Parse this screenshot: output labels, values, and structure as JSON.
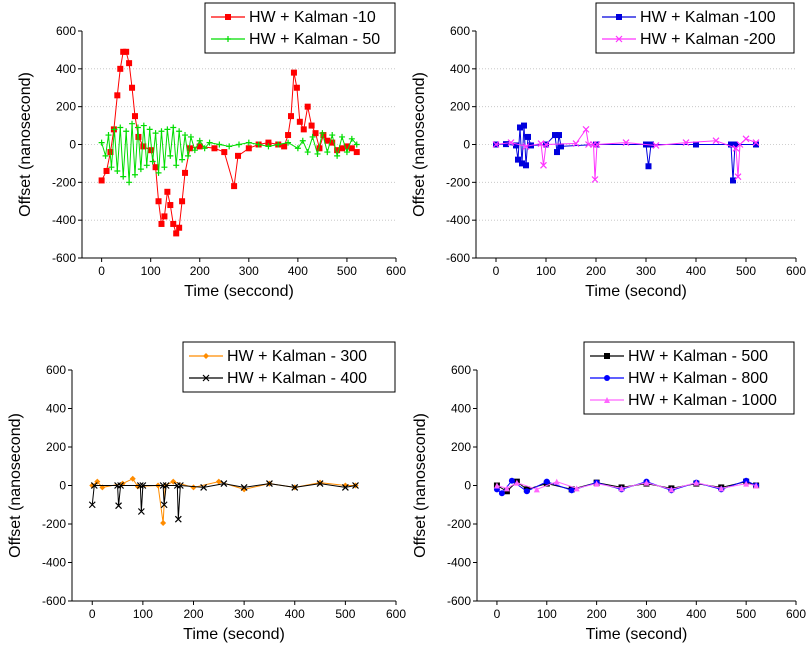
{
  "chart_data": [
    {
      "type": "line",
      "xlabel": "Time (seccond)",
      "ylabel": "Offset (nanosecond)",
      "xlim": [
        -40,
        600
      ],
      "ylim": [
        -600,
        600
      ],
      "xticks": [
        0,
        100,
        200,
        300,
        400,
        500,
        600
      ],
      "yticks": [
        -600,
        -400,
        -200,
        0,
        200,
        400,
        600
      ],
      "grid": "horizontal-dotted",
      "legend_position": "top-right",
      "series": [
        {
          "name": "HW + Kalman -10",
          "color": "#ff0000",
          "marker": "square",
          "points": [
            [
              0,
              -190
            ],
            [
              10,
              -140
            ],
            [
              18,
              -40
            ],
            [
              25,
              80
            ],
            [
              32,
              260
            ],
            [
              38,
              400
            ],
            [
              44,
              490
            ],
            [
              50,
              490
            ],
            [
              56,
              430
            ],
            [
              62,
              300
            ],
            [
              68,
              150
            ],
            [
              75,
              40
            ],
            [
              85,
              -10
            ],
            [
              100,
              -30
            ],
            [
              110,
              -120
            ],
            [
              116,
              -300
            ],
            [
              122,
              -420
            ],
            [
              128,
              -380
            ],
            [
              134,
              -250
            ],
            [
              140,
              -320
            ],
            [
              146,
              -420
            ],
            [
              152,
              -470
            ],
            [
              158,
              -440
            ],
            [
              164,
              -300
            ],
            [
              170,
              -150
            ],
            [
              180,
              -20
            ],
            [
              200,
              -10
            ],
            [
              230,
              -20
            ],
            [
              250,
              -40
            ],
            [
              270,
              -220
            ],
            [
              278,
              -60
            ],
            [
              300,
              -20
            ],
            [
              320,
              0
            ],
            [
              340,
              10
            ],
            [
              360,
              0
            ],
            [
              372,
              -10
            ],
            [
              380,
              50
            ],
            [
              386,
              150
            ],
            [
              392,
              380
            ],
            [
              398,
              300
            ],
            [
              404,
              120
            ],
            [
              412,
              80
            ],
            [
              420,
              200
            ],
            [
              428,
              100
            ],
            [
              436,
              60
            ],
            [
              444,
              -20
            ],
            [
              452,
              50
            ],
            [
              460,
              20
            ],
            [
              470,
              10
            ],
            [
              480,
              -30
            ],
            [
              490,
              -20
            ],
            [
              500,
              -10
            ],
            [
              510,
              -20
            ],
            [
              520,
              -40
            ]
          ]
        },
        {
          "name": "HW + Kalman - 50",
          "color": "#00dd00",
          "marker": "plus",
          "points": [
            [
              0,
              10
            ],
            [
              8,
              -60
            ],
            [
              14,
              50
            ],
            [
              20,
              -120
            ],
            [
              26,
              80
            ],
            [
              32,
              -140
            ],
            [
              38,
              90
            ],
            [
              44,
              -170
            ],
            [
              50,
              70
            ],
            [
              56,
              -200
            ],
            [
              62,
              110
            ],
            [
              68,
              -160
            ],
            [
              74,
              90
            ],
            [
              80,
              -130
            ],
            [
              86,
              100
            ],
            [
              92,
              -110
            ],
            [
              98,
              80
            ],
            [
              104,
              -90
            ],
            [
              110,
              60
            ],
            [
              116,
              -150
            ],
            [
              122,
              70
            ],
            [
              128,
              -120
            ],
            [
              134,
              80
            ],
            [
              140,
              -60
            ],
            [
              146,
              90
            ],
            [
              152,
              -110
            ],
            [
              158,
              70
            ],
            [
              164,
              -80
            ],
            [
              170,
              50
            ],
            [
              176,
              -60
            ],
            [
              182,
              40
            ],
            [
              190,
              -30
            ],
            [
              200,
              20
            ],
            [
              210,
              -20
            ],
            [
              220,
              10
            ],
            [
              240,
              0
            ],
            [
              260,
              -10
            ],
            [
              280,
              0
            ],
            [
              300,
              10
            ],
            [
              320,
              0
            ],
            [
              340,
              -10
            ],
            [
              360,
              0
            ],
            [
              380,
              10
            ],
            [
              400,
              -20
            ],
            [
              410,
              20
            ],
            [
              420,
              -40
            ],
            [
              430,
              40
            ],
            [
              440,
              -50
            ],
            [
              450,
              60
            ],
            [
              460,
              -40
            ],
            [
              470,
              50
            ],
            [
              480,
              -60
            ],
            [
              490,
              40
            ],
            [
              500,
              -40
            ],
            [
              510,
              30
            ],
            [
              520,
              0
            ]
          ]
        }
      ]
    },
    {
      "type": "line",
      "xlabel": "Time (second)",
      "ylabel": "Offset (nanosecond)",
      "xlim": [
        -40,
        600
      ],
      "ylim": [
        -600,
        600
      ],
      "xticks": [
        0,
        100,
        200,
        300,
        400,
        500,
        600
      ],
      "yticks": [
        -600,
        -400,
        -200,
        0,
        200,
        400,
        600
      ],
      "grid": "horizontal-dotted",
      "legend_position": "top-right",
      "series": [
        {
          "name": "HW + Kalman -100",
          "color": "#0000dd",
          "marker": "square",
          "points": [
            [
              0,
              0
            ],
            [
              20,
              2
            ],
            [
              40,
              -5
            ],
            [
              44,
              -80
            ],
            [
              48,
              90
            ],
            [
              52,
              -100
            ],
            [
              56,
              100
            ],
            [
              60,
              -110
            ],
            [
              64,
              40
            ],
            [
              70,
              -5
            ],
            [
              100,
              0
            ],
            [
              118,
              50
            ],
            [
              122,
              -40
            ],
            [
              126,
              50
            ],
            [
              130,
              -10
            ],
            [
              200,
              0
            ],
            [
              300,
              0
            ],
            [
              305,
              -115
            ],
            [
              310,
              0
            ],
            [
              400,
              0
            ],
            [
              470,
              0
            ],
            [
              474,
              -190
            ],
            [
              478,
              0
            ],
            [
              520,
              0
            ]
          ]
        },
        {
          "name": "HW + Kalman -200",
          "color": "#ff33ff",
          "marker": "x",
          "points": [
            [
              0,
              0
            ],
            [
              30,
              10
            ],
            [
              60,
              -10
            ],
            [
              90,
              5
            ],
            [
              95,
              -110
            ],
            [
              100,
              0
            ],
            [
              160,
              5
            ],
            [
              180,
              80
            ],
            [
              185,
              0
            ],
            [
              195,
              0
            ],
            [
              198,
              -185
            ],
            [
              202,
              0
            ],
            [
              260,
              10
            ],
            [
              320,
              -5
            ],
            [
              380,
              10
            ],
            [
              440,
              20
            ],
            [
              480,
              -20
            ],
            [
              484,
              -170
            ],
            [
              488,
              0
            ],
            [
              500,
              30
            ],
            [
              520,
              10
            ]
          ]
        }
      ]
    },
    {
      "type": "line",
      "xlabel": "Time (second)",
      "ylabel": "Offset (nanosecond)",
      "xlim": [
        -40,
        600
      ],
      "ylim": [
        -600,
        600
      ],
      "xticks": [
        0,
        100,
        200,
        300,
        400,
        500,
        600
      ],
      "yticks": [
        -600,
        -400,
        -200,
        0,
        200,
        400,
        600
      ],
      "grid": "none",
      "legend_position": "top-right",
      "series": [
        {
          "name": "HW + Kalman - 300",
          "color": "#ff8c00",
          "marker": "diamond",
          "points": [
            [
              0,
              0
            ],
            [
              10,
              20
            ],
            [
              20,
              -10
            ],
            [
              60,
              10
            ],
            [
              80,
              35
            ],
            [
              90,
              -5
            ],
            [
              130,
              0
            ],
            [
              140,
              -195
            ],
            [
              144,
              0
            ],
            [
              160,
              20
            ],
            [
              200,
              -10
            ],
            [
              250,
              20
            ],
            [
              300,
              -20
            ],
            [
              350,
              10
            ],
            [
              400,
              -10
            ],
            [
              450,
              15
            ],
            [
              500,
              0
            ],
            [
              520,
              0
            ]
          ]
        },
        {
          "name": "HW + Kalman - 400",
          "color": "#000000",
          "marker": "x",
          "points": [
            [
              0,
              -100
            ],
            [
              4,
              0
            ],
            [
              50,
              0
            ],
            [
              52,
              -105
            ],
            [
              56,
              0
            ],
            [
              95,
              0
            ],
            [
              97,
              -135
            ],
            [
              100,
              0
            ],
            [
              140,
              0
            ],
            [
              142,
              -100
            ],
            [
              146,
              0
            ],
            [
              168,
              0
            ],
            [
              170,
              -175
            ],
            [
              174,
              0
            ],
            [
              220,
              -10
            ],
            [
              260,
              10
            ],
            [
              300,
              -10
            ],
            [
              350,
              10
            ],
            [
              400,
              -10
            ],
            [
              450,
              10
            ],
            [
              500,
              -10
            ],
            [
              520,
              0
            ]
          ]
        }
      ]
    },
    {
      "type": "line",
      "xlabel": "Time (second)",
      "ylabel": "Offset (nanosecond)",
      "xlim": [
        -40,
        600
      ],
      "ylim": [
        -600,
        600
      ],
      "xticks": [
        0,
        100,
        200,
        300,
        400,
        500,
        600
      ],
      "yticks": [
        -600,
        -400,
        -200,
        0,
        200,
        400,
        600
      ],
      "grid": "none",
      "legend_position": "top-right",
      "series": [
        {
          "name": "HW + Kalman - 500",
          "color": "#000000",
          "marker": "square",
          "points": [
            [
              0,
              0
            ],
            [
              20,
              -30
            ],
            [
              40,
              20
            ],
            [
              60,
              -20
            ],
            [
              100,
              10
            ],
            [
              150,
              -20
            ],
            [
              200,
              15
            ],
            [
              250,
              -10
            ],
            [
              300,
              10
            ],
            [
              350,
              -15
            ],
            [
              400,
              10
            ],
            [
              450,
              -10
            ],
            [
              500,
              20
            ],
            [
              520,
              0
            ]
          ]
        },
        {
          "name": "HW + Kalman - 800",
          "color": "#0000ff",
          "marker": "circle",
          "points": [
            [
              0,
              -20
            ],
            [
              10,
              -40
            ],
            [
              30,
              25
            ],
            [
              60,
              -30
            ],
            [
              100,
              20
            ],
            [
              150,
              -25
            ],
            [
              200,
              15
            ],
            [
              250,
              -20
            ],
            [
              300,
              20
            ],
            [
              350,
              -25
            ],
            [
              400,
              15
            ],
            [
              450,
              -20
            ],
            [
              500,
              25
            ],
            [
              520,
              0
            ]
          ]
        },
        {
          "name": "HW + Kalman - 1000",
          "color": "#ff66ff",
          "marker": "triangle",
          "points": [
            [
              0,
              0
            ],
            [
              20,
              -15
            ],
            [
              40,
              15
            ],
            [
              80,
              -20
            ],
            [
              120,
              20
            ],
            [
              160,
              -15
            ],
            [
              200,
              10
            ],
            [
              250,
              -15
            ],
            [
              300,
              15
            ],
            [
              350,
              -20
            ],
            [
              400,
              15
            ],
            [
              450,
              -15
            ],
            [
              500,
              10
            ],
            [
              520,
              0
            ]
          ]
        }
      ]
    }
  ]
}
